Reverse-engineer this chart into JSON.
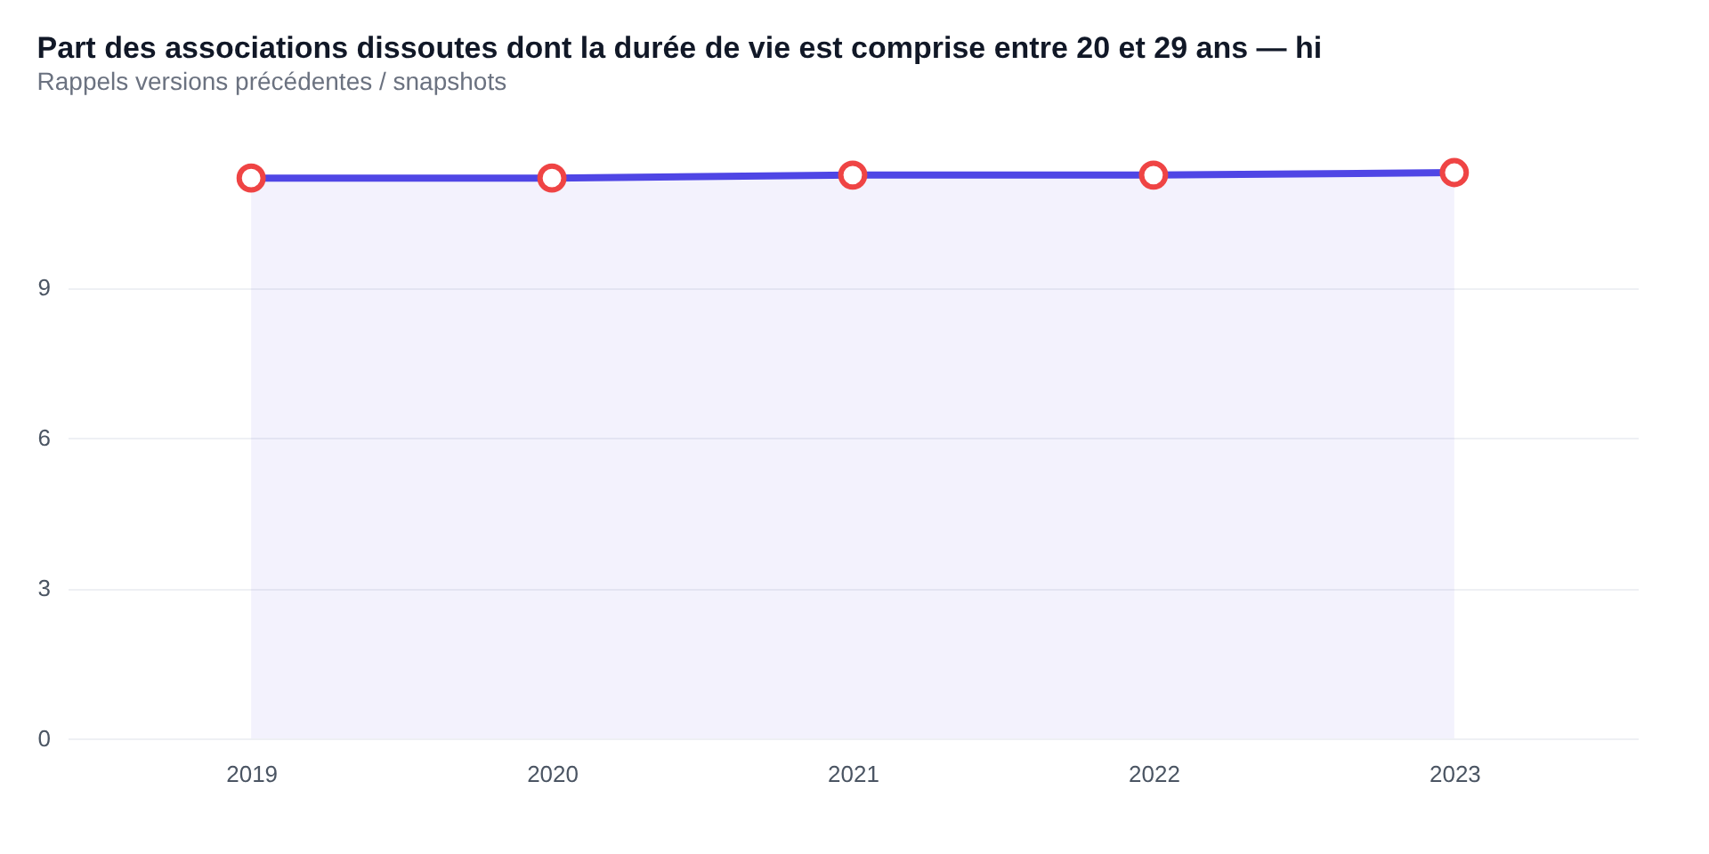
{
  "chart_data": {
    "type": "area",
    "title": "Part des associations dissoutes dont la durée de vie est comprise entre 20 et 29 ans — hi",
    "subtitle": "Rappels versions précédentes / snapshots",
    "categories": [
      "2019",
      "2020",
      "2021",
      "2022",
      "2023"
    ],
    "series": [
      {
        "color": "#4f46e5",
        "values": [
          11.19,
          11.19,
          11.25,
          11.25,
          11.3
        ]
      }
    ],
    "ylim": [
      0,
      11.3
    ],
    "yticks": [
      0,
      3,
      6,
      9
    ],
    "grid": "y",
    "marker": "circle",
    "line_style": "solid"
  }
}
